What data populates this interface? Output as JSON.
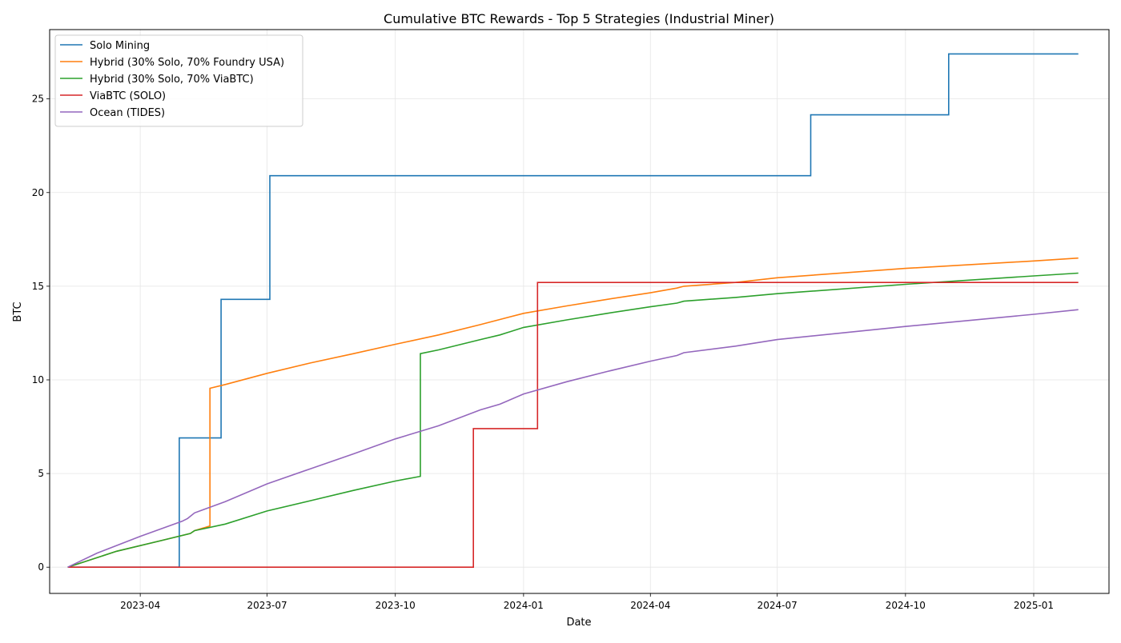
{
  "chart_data": {
    "type": "line",
    "title": "Cumulative BTC Rewards - Top 5 Strategies (Industrial Miner)",
    "xlabel": "Date",
    "ylabel": "BTC",
    "x_ticks": [
      "2023-04",
      "2023-07",
      "2023-10",
      "2024-01",
      "2024-04",
      "2024-07",
      "2024-10",
      "2025-01"
    ],
    "y_ticks": [
      "0",
      "5",
      "10",
      "15",
      "20",
      "25"
    ],
    "xlim": [
      "2023-01-26",
      "2025-02-24"
    ],
    "ylim": [
      -1.4,
      28.7
    ],
    "grid": true,
    "legend_position": "top-left",
    "series": [
      {
        "name": "Solo Mining",
        "color": "#1f77b4",
        "step": true,
        "points": [
          [
            "2023-02-08",
            0
          ],
          [
            "2023-04-29",
            0
          ],
          [
            "2023-04-29",
            6.9
          ],
          [
            "2023-05-29",
            6.9
          ],
          [
            "2023-05-29",
            14.3
          ],
          [
            "2023-07-03",
            14.3
          ],
          [
            "2023-07-03",
            20.9
          ],
          [
            "2024-07-25",
            20.9
          ],
          [
            "2024-07-25",
            24.15
          ],
          [
            "2024-11-01",
            24.15
          ],
          [
            "2024-11-01",
            27.4
          ],
          [
            "2025-02-02",
            27.4
          ]
        ]
      },
      {
        "name": "Hybrid (30% Solo, 70% Foundry USA)",
        "color": "#ff7f0e",
        "points": [
          [
            "2023-02-08",
            0
          ],
          [
            "2023-03-15",
            0.85
          ],
          [
            "2023-04-15",
            1.4
          ],
          [
            "2023-05-07",
            1.8
          ],
          [
            "2023-05-10",
            1.95
          ],
          [
            "2023-05-21",
            2.2
          ],
          [
            "2023-05-21",
            9.55
          ],
          [
            "2023-06-01",
            9.75
          ],
          [
            "2023-07-01",
            10.35
          ],
          [
            "2023-08-01",
            10.9
          ],
          [
            "2023-09-01",
            11.4
          ],
          [
            "2023-10-01",
            11.9
          ],
          [
            "2023-11-01",
            12.4
          ],
          [
            "2023-12-01",
            12.95
          ],
          [
            "2024-01-01",
            13.55
          ],
          [
            "2024-02-01",
            13.95
          ],
          [
            "2024-03-01",
            14.3
          ],
          [
            "2024-04-01",
            14.65
          ],
          [
            "2024-04-20",
            14.9
          ],
          [
            "2024-04-25",
            15.0
          ],
          [
            "2024-06-01",
            15.2
          ],
          [
            "2024-07-01",
            15.45
          ],
          [
            "2024-10-01",
            15.95
          ],
          [
            "2025-01-01",
            16.35
          ],
          [
            "2025-02-02",
            16.5
          ]
        ]
      },
      {
        "name": "Hybrid (30% Solo, 70% ViaBTC)",
        "color": "#2ca02c",
        "points": [
          [
            "2023-02-08",
            0
          ],
          [
            "2023-03-15",
            0.85
          ],
          [
            "2023-04-15",
            1.4
          ],
          [
            "2023-05-07",
            1.8
          ],
          [
            "2023-05-10",
            1.95
          ],
          [
            "2023-06-01",
            2.3
          ],
          [
            "2023-07-01",
            3.0
          ],
          [
            "2023-08-01",
            3.55
          ],
          [
            "2023-09-01",
            4.1
          ],
          [
            "2023-10-01",
            4.6
          ],
          [
            "2023-10-19",
            4.85
          ],
          [
            "2023-10-19",
            11.4
          ],
          [
            "2023-11-01",
            11.6
          ],
          [
            "2023-12-01",
            12.15
          ],
          [
            "2023-12-15",
            12.4
          ],
          [
            "2024-01-01",
            12.8
          ],
          [
            "2024-02-01",
            13.2
          ],
          [
            "2024-03-01",
            13.55
          ],
          [
            "2024-04-01",
            13.9
          ],
          [
            "2024-04-20",
            14.1
          ],
          [
            "2024-04-25",
            14.2
          ],
          [
            "2024-06-01",
            14.4
          ],
          [
            "2024-07-01",
            14.6
          ],
          [
            "2024-10-01",
            15.1
          ],
          [
            "2025-01-01",
            15.55
          ],
          [
            "2025-02-02",
            15.7
          ]
        ]
      },
      {
        "name": "ViaBTC (SOLO)",
        "color": "#d62728",
        "step": true,
        "points": [
          [
            "2023-02-08",
            0
          ],
          [
            "2023-11-26",
            0
          ],
          [
            "2023-11-26",
            7.4
          ],
          [
            "2024-01-11",
            7.4
          ],
          [
            "2024-01-11",
            15.2
          ],
          [
            "2025-02-02",
            15.2
          ]
        ]
      },
      {
        "name": "Ocean (TIDES)",
        "color": "#9467bd",
        "points": [
          [
            "2023-02-08",
            0
          ],
          [
            "2023-03-01",
            0.75
          ],
          [
            "2023-04-01",
            1.65
          ],
          [
            "2023-05-01",
            2.45
          ],
          [
            "2023-05-05",
            2.6
          ],
          [
            "2023-05-10",
            2.9
          ],
          [
            "2023-06-01",
            3.5
          ],
          [
            "2023-07-01",
            4.45
          ],
          [
            "2023-08-01",
            5.25
          ],
          [
            "2023-09-01",
            6.05
          ],
          [
            "2023-10-01",
            6.85
          ],
          [
            "2023-11-01",
            7.55
          ],
          [
            "2023-12-01",
            8.4
          ],
          [
            "2023-12-15",
            8.7
          ],
          [
            "2024-01-01",
            9.25
          ],
          [
            "2024-02-01",
            9.9
          ],
          [
            "2024-03-01",
            10.45
          ],
          [
            "2024-04-01",
            11.0
          ],
          [
            "2024-04-20",
            11.3
          ],
          [
            "2024-04-25",
            11.45
          ],
          [
            "2024-06-01",
            11.8
          ],
          [
            "2024-07-01",
            12.15
          ],
          [
            "2024-10-01",
            12.85
          ],
          [
            "2025-01-01",
            13.5
          ],
          [
            "2025-02-02",
            13.75
          ]
        ]
      }
    ]
  }
}
